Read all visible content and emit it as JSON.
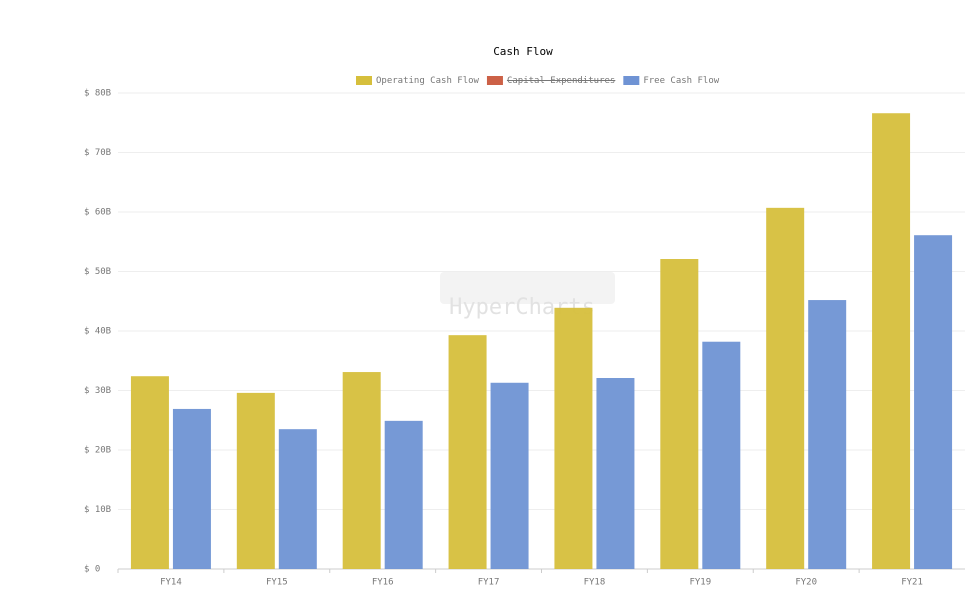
{
  "chart_data": {
    "type": "bar",
    "title": "Cash Flow",
    "watermark": "HyperCharts",
    "categories": [
      "FY14",
      "FY15",
      "FY16",
      "FY17",
      "FY18",
      "FY19",
      "FY20",
      "FY21"
    ],
    "series": [
      {
        "name": "Operating Cash Flow",
        "color": "#d6bf3c",
        "values": [
          32.4,
          29.6,
          33.1,
          39.3,
          43.9,
          52.1,
          60.7,
          76.6
        ]
      },
      {
        "name": "Capital Expenditures",
        "color": "#cc6147",
        "hidden": true,
        "values": [
          null,
          null,
          null,
          null,
          null,
          null,
          null,
          null
        ]
      },
      {
        "name": "Free Cash Flow",
        "color": "#6f93d4",
        "values": [
          26.9,
          23.5,
          24.9,
          31.3,
          32.1,
          38.2,
          45.2,
          56.1
        ]
      }
    ],
    "ylim": [
      0,
      80
    ],
    "yticks": [
      {
        "value": 0,
        "label": "$ 0"
      },
      {
        "value": 10,
        "label": "$ 10B"
      },
      {
        "value": 20,
        "label": "$ 20B"
      },
      {
        "value": 30,
        "label": "$ 30B"
      },
      {
        "value": 40,
        "label": "$ 40B"
      },
      {
        "value": 50,
        "label": "$ 50B"
      },
      {
        "value": 60,
        "label": "$ 60B"
      },
      {
        "value": 70,
        "label": "$ 70B"
      },
      {
        "value": 80,
        "label": "$ 80B"
      }
    ],
    "grid": true,
    "legend": "top"
  }
}
